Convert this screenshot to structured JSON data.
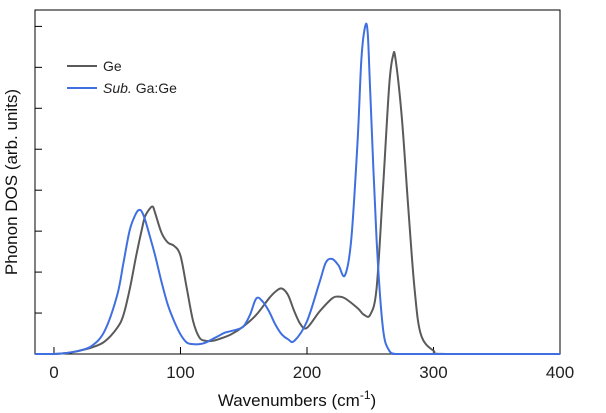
{
  "chart_data": {
    "type": "line",
    "title": "",
    "xlabel": "Wavenumbers (cm",
    "xlabel_sup": "-1",
    "xlabel_close": ")",
    "ylabel": "Phonon DOS (arb. units)",
    "xlim": [
      -15,
      400
    ],
    "ylim": [
      0,
      1.05
    ],
    "xticks": [
      0,
      100,
      200,
      300,
      400
    ],
    "xtick_labels": [
      "0",
      "100",
      "200",
      "300",
      "400"
    ],
    "yticks": [
      0.125,
      0.25,
      0.375,
      0.5,
      0.625,
      0.75,
      0.875,
      1.0
    ],
    "grid": false,
    "legend_position": "top-left",
    "series": [
      {
        "name": "Ge",
        "legend_label": "Ge",
        "color": "#5a5a5a",
        "x": [
          -15,
          0,
          10,
          20,
          30,
          40,
          50,
          55,
          60,
          65,
          70,
          72,
          75,
          78,
          80,
          85,
          90,
          95,
          100,
          105,
          110,
          115,
          120,
          125,
          130,
          140,
          150,
          160,
          170,
          175,
          180,
          185,
          190,
          195,
          200,
          210,
          220,
          225,
          230,
          240,
          245,
          250,
          255,
          260,
          265,
          268,
          270,
          275,
          280,
          285,
          290,
          300,
          310,
          400
        ],
        "y": [
          0,
          0,
          0.003,
          0.01,
          0.02,
          0.038,
          0.08,
          0.12,
          0.2,
          0.3,
          0.39,
          0.42,
          0.44,
          0.45,
          0.43,
          0.37,
          0.34,
          0.33,
          0.3,
          0.2,
          0.1,
          0.05,
          0.04,
          0.04,
          0.045,
          0.06,
          0.085,
          0.12,
          0.17,
          0.19,
          0.2,
          0.18,
          0.13,
          0.09,
          0.08,
          0.13,
          0.17,
          0.175,
          0.17,
          0.14,
          0.12,
          0.12,
          0.2,
          0.5,
          0.82,
          0.91,
          0.9,
          0.72,
          0.45,
          0.2,
          0.06,
          0.01,
          0,
          0
        ]
      },
      {
        "name": "Sub. Ga:Ge",
        "legend_label_italic": "Sub.",
        "legend_label_rest": " Ga:Ge",
        "color": "#3f6fe0",
        "x": [
          -15,
          0,
          10,
          20,
          30,
          40,
          50,
          55,
          60,
          65,
          68,
          70,
          72,
          75,
          80,
          85,
          90,
          95,
          100,
          105,
          110,
          115,
          120,
          125,
          130,
          135,
          140,
          145,
          150,
          155,
          160,
          165,
          170,
          175,
          180,
          185,
          190,
          200,
          210,
          215,
          220,
          225,
          230,
          235,
          240,
          243,
          246,
          248,
          250,
          255,
          260,
          265,
          270,
          280,
          400
        ],
        "y": [
          0,
          0,
          0.003,
          0.01,
          0.025,
          0.07,
          0.18,
          0.28,
          0.38,
          0.43,
          0.44,
          0.43,
          0.41,
          0.37,
          0.3,
          0.22,
          0.15,
          0.1,
          0.06,
          0.035,
          0.03,
          0.03,
          0.035,
          0.045,
          0.055,
          0.065,
          0.07,
          0.075,
          0.085,
          0.12,
          0.17,
          0.16,
          0.13,
          0.09,
          0.06,
          0.045,
          0.04,
          0.1,
          0.22,
          0.28,
          0.29,
          0.27,
          0.24,
          0.35,
          0.65,
          0.9,
          1.0,
          0.98,
          0.8,
          0.35,
          0.08,
          0.01,
          0,
          0,
          0
        ]
      }
    ]
  }
}
